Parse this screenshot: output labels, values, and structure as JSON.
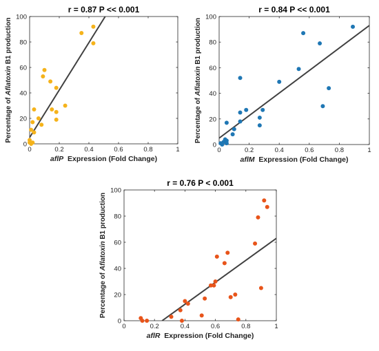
{
  "chart_data": [
    {
      "type": "scatter",
      "title": "r = 0.87   P << 0.001",
      "xlabel_gene": "aflP",
      "xlabel_rest": "  Expression (Fold Change)",
      "ylabel": "Percentage of Aflatoxin B1 production",
      "xlim": [
        0,
        1
      ],
      "ylim": [
        0,
        100
      ],
      "xticks": [
        0,
        0.2,
        0.4,
        0.6,
        0.8,
        1
      ],
      "xtick_labels": [
        "0",
        "0.2",
        "0.4",
        "0.6",
        "0.8",
        "1"
      ],
      "yticks": [
        0,
        20,
        40,
        60,
        80,
        100
      ],
      "ytick_labels": [
        "0",
        "20",
        "40",
        "60",
        "80",
        "100"
      ],
      "grid": false,
      "color": "#F5B31B",
      "line_color": "#404040",
      "points": [
        {
          "x": 0.0,
          "y": 1
        },
        {
          "x": 0.0,
          "y": 3
        },
        {
          "x": 0.01,
          "y": 0
        },
        {
          "x": 0.02,
          "y": 1
        },
        {
          "x": 0.01,
          "y": 11
        },
        {
          "x": 0.02,
          "y": 17
        },
        {
          "x": 0.03,
          "y": 27
        },
        {
          "x": 0.03,
          "y": 9
        },
        {
          "x": 0.06,
          "y": 20
        },
        {
          "x": 0.08,
          "y": 15
        },
        {
          "x": 0.09,
          "y": 53
        },
        {
          "x": 0.1,
          "y": 58
        },
        {
          "x": 0.14,
          "y": 49
        },
        {
          "x": 0.15,
          "y": 27
        },
        {
          "x": 0.18,
          "y": 44
        },
        {
          "x": 0.18,
          "y": 25
        },
        {
          "x": 0.18,
          "y": 19
        },
        {
          "x": 0.24,
          "y": 30
        },
        {
          "x": 0.35,
          "y": 87
        },
        {
          "x": 0.43,
          "y": 92
        },
        {
          "x": 0.43,
          "y": 79
        }
      ],
      "fit": {
        "x": [
          0,
          0.51
        ],
        "y": [
          5,
          100
        ]
      }
    },
    {
      "type": "scatter",
      "title": "r = 0.84   P << 0.001",
      "xlabel_gene": "aflM",
      "xlabel_rest": "  Expression (Fold Change)",
      "ylabel": "Percentage of Aflatoxin B1 production",
      "xlim": [
        0,
        1
      ],
      "ylim": [
        0,
        100
      ],
      "xticks": [
        0,
        0.2,
        0.4,
        0.6,
        0.8,
        1
      ],
      "xtick_labels": [
        "0",
        "0.2",
        "0.4",
        "0.6",
        "0.8",
        "1"
      ],
      "yticks": [
        0,
        20,
        40,
        60,
        80,
        100
      ],
      "ytick_labels": [
        "0",
        "20",
        "40",
        "60",
        "80",
        "100"
      ],
      "grid": false,
      "color": "#1F77B4",
      "line_color": "#404040",
      "points": [
        {
          "x": 0.01,
          "y": 1
        },
        {
          "x": 0.02,
          "y": 0
        },
        {
          "x": 0.03,
          "y": 2
        },
        {
          "x": 0.04,
          "y": 4
        },
        {
          "x": 0.05,
          "y": 3
        },
        {
          "x": 0.05,
          "y": 1
        },
        {
          "x": 0.05,
          "y": 17
        },
        {
          "x": 0.09,
          "y": 8
        },
        {
          "x": 0.1,
          "y": 12
        },
        {
          "x": 0.14,
          "y": 18
        },
        {
          "x": 0.14,
          "y": 25
        },
        {
          "x": 0.14,
          "y": 52
        },
        {
          "x": 0.18,
          "y": 27
        },
        {
          "x": 0.27,
          "y": 15
        },
        {
          "x": 0.27,
          "y": 21
        },
        {
          "x": 0.29,
          "y": 27
        },
        {
          "x": 0.4,
          "y": 49
        },
        {
          "x": 0.53,
          "y": 59
        },
        {
          "x": 0.56,
          "y": 87
        },
        {
          "x": 0.67,
          "y": 79
        },
        {
          "x": 0.69,
          "y": 30
        },
        {
          "x": 0.73,
          "y": 44
        },
        {
          "x": 0.89,
          "y": 92
        }
      ],
      "fit": {
        "x": [
          0,
          1
        ],
        "y": [
          5,
          93
        ]
      }
    },
    {
      "type": "scatter",
      "title": "r = 0.76   P < 0.001",
      "xlabel_gene": "aflR",
      "xlabel_rest": "  Expression (Fold Change)",
      "ylabel": "Percentage of Aflatoxin B1 production",
      "xlim": [
        0,
        1
      ],
      "ylim": [
        0,
        100
      ],
      "xticks": [
        0,
        0.2,
        0.4,
        0.6,
        0.8,
        1
      ],
      "xtick_labels": [
        "0",
        "0.2",
        "0.4",
        "0.6",
        "0.8",
        "1"
      ],
      "yticks": [
        0,
        20,
        40,
        60,
        80,
        100
      ],
      "ytick_labels": [
        "0",
        "20",
        "40",
        "60",
        "80",
        "100"
      ],
      "grid": false,
      "color": "#E8541A",
      "line_color": "#404040",
      "points": [
        {
          "x": 0.11,
          "y": 2
        },
        {
          "x": 0.12,
          "y": 0
        },
        {
          "x": 0.15,
          "y": 0
        },
        {
          "x": 0.31,
          "y": 3
        },
        {
          "x": 0.37,
          "y": 8
        },
        {
          "x": 0.38,
          "y": 0
        },
        {
          "x": 0.4,
          "y": 15
        },
        {
          "x": 0.42,
          "y": 13
        },
        {
          "x": 0.51,
          "y": 4
        },
        {
          "x": 0.53,
          "y": 17
        },
        {
          "x": 0.57,
          "y": 27
        },
        {
          "x": 0.59,
          "y": 27
        },
        {
          "x": 0.6,
          "y": 30
        },
        {
          "x": 0.61,
          "y": 49
        },
        {
          "x": 0.66,
          "y": 44
        },
        {
          "x": 0.68,
          "y": 52
        },
        {
          "x": 0.7,
          "y": 18
        },
        {
          "x": 0.73,
          "y": 20
        },
        {
          "x": 0.75,
          "y": 1
        },
        {
          "x": 0.86,
          "y": 59
        },
        {
          "x": 0.88,
          "y": 79
        },
        {
          "x": 0.9,
          "y": 25
        },
        {
          "x": 0.92,
          "y": 92
        },
        {
          "x": 0.94,
          "y": 87
        }
      ],
      "fit": {
        "x": [
          0.25,
          1
        ],
        "y": [
          0,
          63
        ]
      }
    }
  ]
}
